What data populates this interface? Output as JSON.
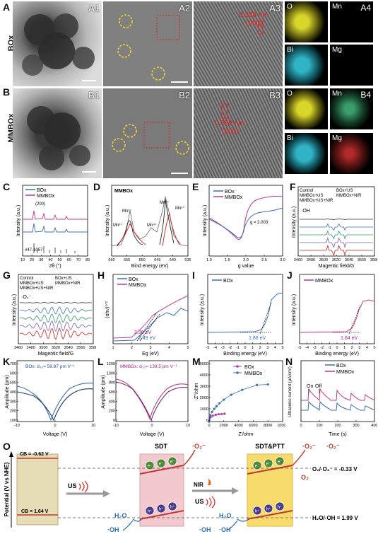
{
  "panelA": {
    "letter": "A",
    "row": "BOx",
    "t1": "A1",
    "t2": "A2",
    "t3": "A3",
    "t4": "A4",
    "lattice": "0.388 nm",
    "hkl": "(200)"
  },
  "panelB": {
    "letter": "B",
    "row": "MMBOx",
    "t1": "B1",
    "t2": "B2",
    "t3": "B3",
    "t4": "B4",
    "lattice": "0.389 nm",
    "hkl": "(200)"
  },
  "eds": {
    "O": "O",
    "Mn": "Mn",
    "Bi": "Bi",
    "Mg": "Mg"
  },
  "colors": {
    "box": "#3a6fb5",
    "mmbox": "#c2378c",
    "o_map": "#d9d62a",
    "bi_map": "#2fb3c5",
    "mn_map": "#3a9e6a",
    "mg_map": "#b22a2a"
  },
  "C": {
    "letter": "C",
    "legend1": "BOx",
    "legend2": "MMBOx",
    "peak": "(200)",
    "ref": "#47-1057",
    "xlabel": "2θ (°)",
    "ylabel": "Intensity (a.u.)",
    "xticks": [
      "10",
      "20",
      "30",
      "40",
      "50",
      "60",
      "70",
      "80"
    ]
  },
  "D": {
    "letter": "D",
    "title": "MMBOx",
    "xlabel": "Bind energy (eV)",
    "ylabel": "Intensity (a.u.)",
    "xticks": [
      "660",
      "655",
      "650",
      "645",
      "640",
      "635"
    ],
    "labels": [
      "Mn³⁺",
      "Mn²⁺",
      "Mn⁴⁺",
      "Mn³⁺",
      "Mn²⁺"
    ]
  },
  "E": {
    "letter": "E",
    "legend1": "BOx",
    "legend2": "MMBOx",
    "gval": "g = 2.003",
    "xlabel": "g value",
    "ylabel": "Intensity (a.u.)",
    "xticks": [
      "1.0",
      "1.5",
      "2.0",
      "2.5",
      "3.0"
    ]
  },
  "F": {
    "letter": "F",
    "legend": [
      "Control",
      "BOx+US",
      "MMBOx+US",
      "MMBOx+NIR",
      "MMBOx+US+NIR"
    ],
    "species": "·OH",
    "xlabel": "Magentic field/G",
    "ylabel": "Intensity (a.u.)",
    "xticks": [
      "3460",
      "3480",
      "3500",
      "3520",
      "3540",
      "3560",
      "3580"
    ]
  },
  "G": {
    "letter": "G",
    "legend": [
      "Control",
      "BOx+US",
      "MMBOx+US",
      "MMBOx+NIR",
      "MMBOx+US+NIR"
    ],
    "species": "·O₂⁻",
    "xlabel": "Magentic field/G",
    "ylabel": "Intensity (a.u.)",
    "xticks": [
      "3460",
      "3480",
      "3500",
      "3520",
      "3540",
      "3560",
      "3580"
    ]
  },
  "H": {
    "letter": "H",
    "legend1": "BOx",
    "legend2": "MMBOx",
    "v1": "2.36 eV",
    "v2": "2.49 eV",
    "xlabel": "Eg (eV)",
    "ylabel": "(αhν)¹ᐟ²",
    "xticks": [
      "1",
      "2",
      "3",
      "4",
      "5"
    ]
  },
  "I": {
    "letter": "I",
    "legend": "BOx",
    "value": "1.86 eV",
    "xlabel": "Binding energy (eV)",
    "ylabel": "Intensity (a.u.)",
    "xticks": [
      "-5",
      "-4",
      "-3",
      "-2",
      "-1",
      "0",
      "1",
      "2",
      "3",
      "4",
      "5"
    ]
  },
  "J": {
    "letter": "J",
    "legend": "MMBOx",
    "value": "1.64 eV",
    "xlabel": "Binding energy (eV)",
    "ylabel": "Intensity (a.u.)",
    "xticks": [
      "-5",
      "-4",
      "-3",
      "-2",
      "-1",
      "0",
      "1",
      "2",
      "3",
      "4",
      "5"
    ]
  },
  "K": {
    "letter": "K",
    "note": "BOx: d₃₃= 59.87 pm V⁻¹",
    "xlabel": "Voltage (V)",
    "ylabel": "Amplitude (pm)",
    "xticks": [
      "-10",
      "0",
      "10"
    ],
    "yticks": [
      "100",
      "200",
      "300",
      "400",
      "500",
      "600",
      "700"
    ]
  },
  "L": {
    "letter": "L",
    "note": "MMBOx: d₃₃= 139.5 pm V⁻¹",
    "xlabel": "Voltage (V)",
    "ylabel": "Amplitude (pm)",
    "xticks": [
      "-10",
      "0",
      "10"
    ],
    "yticks": [
      "0",
      "200",
      "400",
      "600",
      "800",
      "1000",
      "1200"
    ]
  },
  "M": {
    "letter": "M",
    "legend1": "BOx",
    "legend2": "MMBOx",
    "xlabel": "Z'/ohm",
    "ylabel": "-Z''/ohm",
    "xticks": [
      "0",
      "2000",
      "4000",
      "6000",
      "8000",
      "10000"
    ],
    "yticks": [
      "0",
      "1000",
      "2000",
      "3000",
      "4000",
      "5000"
    ]
  },
  "N": {
    "letter": "N",
    "legend1": "BOx",
    "legend2": "MMBOx",
    "on": "On",
    "off": "Off",
    "xlabel": "Time (s)",
    "ylabel": "Ultrasonic current (μA/cm²)",
    "xticks": [
      "0",
      "100",
      "200",
      "300",
      "400"
    ]
  },
  "O": {
    "letter": "O",
    "axis": "Potential  (V  vs NHE)",
    "cb": "CB = -0.62 V",
    "vb": "CB = 1.64 V",
    "us": "US",
    "sdt": "SDT",
    "nir": "NIR",
    "sdtptt": "SDT&PTT",
    "o2": "O₂",
    "o2r": "·O₂⁻",
    "h2o": "H₂O",
    "oh": "·OH",
    "ref1": "O₂/·O₂⁻ = -0.33 V",
    "ref2": "H₂O/·OH = 1.99 V",
    "e": "e⁻",
    "h": "h⁺"
  }
}
